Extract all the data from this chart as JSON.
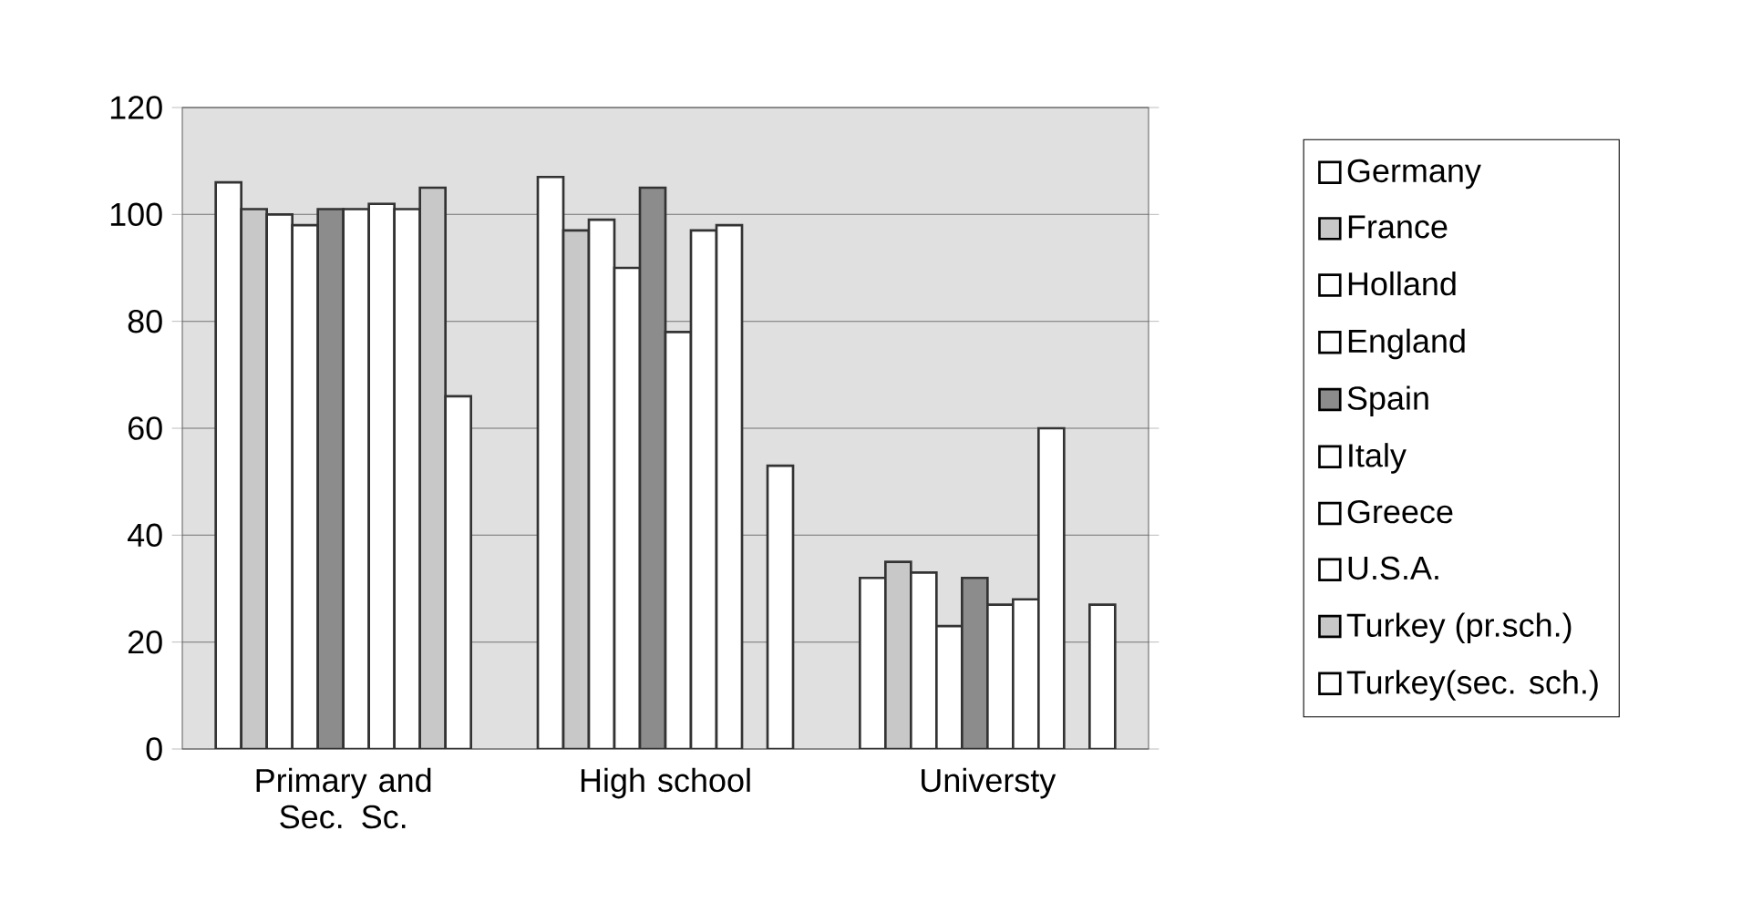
{
  "chart_data": {
    "type": "bar",
    "categories": [
      "Primary and Sec. Sc.",
      "High school",
      "Universty"
    ],
    "series": [
      {
        "name": "Germany",
        "color": "#ffffff",
        "values": [
          106,
          107,
          32
        ]
      },
      {
        "name": "France",
        "color": "#c8c8c8",
        "values": [
          101,
          97,
          35
        ]
      },
      {
        "name": "Holland",
        "color": "#ffffff",
        "values": [
          100,
          99,
          33
        ]
      },
      {
        "name": "England",
        "color": "#ffffff",
        "values": [
          98,
          90,
          23
        ]
      },
      {
        "name": "Spain",
        "color": "#8c8c8c",
        "values": [
          101,
          105,
          32
        ]
      },
      {
        "name": "Italy",
        "color": "#ffffff",
        "values": [
          101,
          78,
          27
        ]
      },
      {
        "name": "Greece",
        "color": "#ffffff",
        "values": [
          102,
          97,
          28
        ]
      },
      {
        "name": "U.S.A.",
        "color": "#ffffff",
        "values": [
          101,
          98,
          60
        ]
      },
      {
        "name": "Turkey (pr.sch.)",
        "color": "#c8c8c8",
        "values": [
          105,
          null,
          null
        ]
      },
      {
        "name": "Turkey(sec. sch.)",
        "color": "#ffffff",
        "values": [
          66,
          53,
          27
        ]
      }
    ],
    "ylim": [
      0,
      120
    ],
    "yticks": [
      0,
      20,
      40,
      60,
      80,
      100,
      120
    ],
    "grid": "y",
    "legend": "right"
  }
}
